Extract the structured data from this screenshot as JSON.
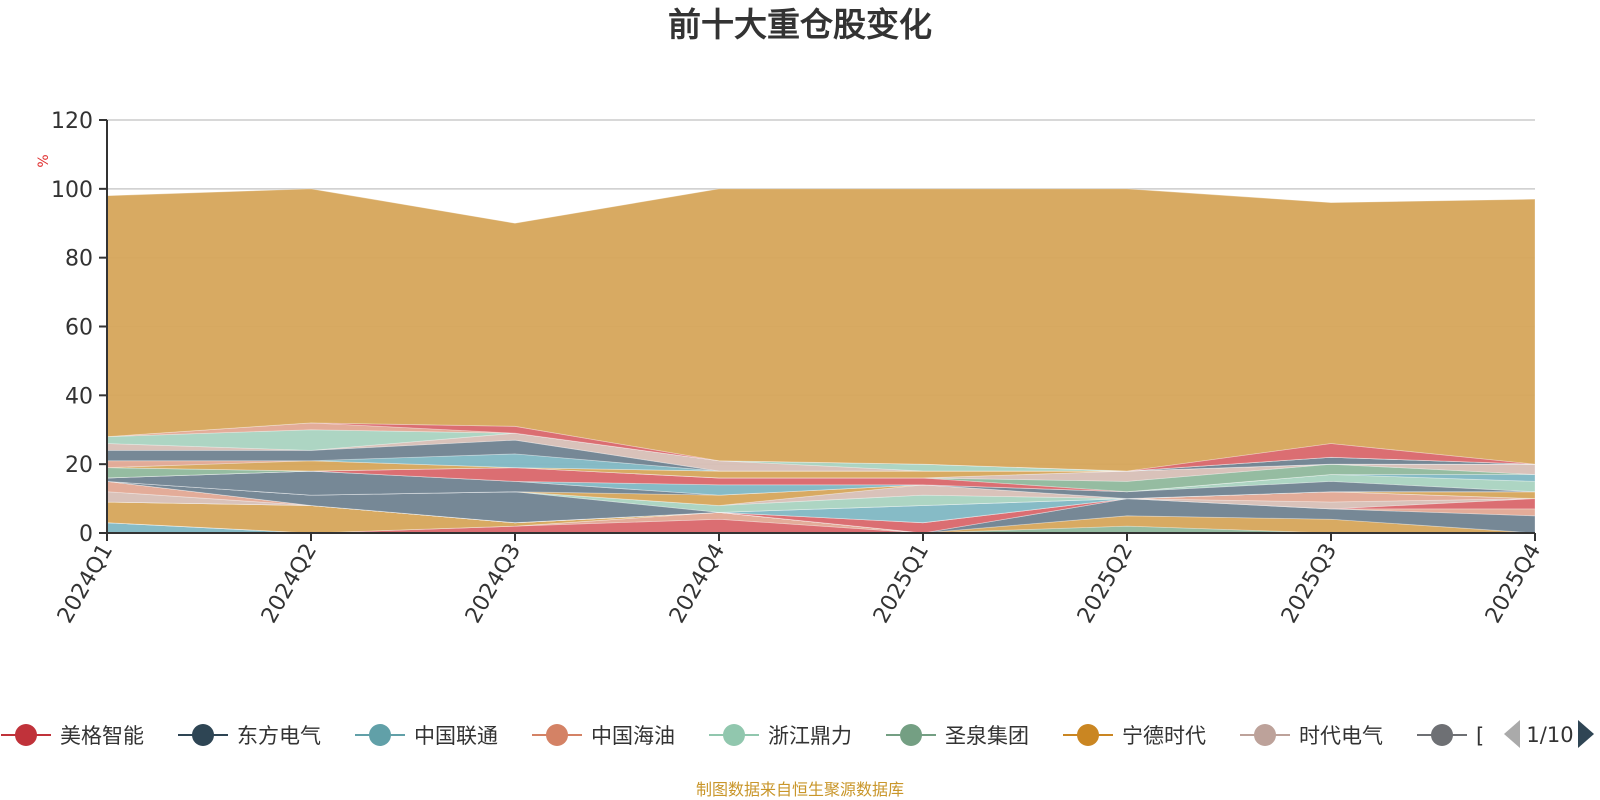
{
  "chart_data": {
    "type": "area",
    "stacked": true,
    "title": "前十大重仓股变化",
    "ylabel": "%",
    "ylim": [
      0,
      120
    ],
    "yticks": [
      0,
      20,
      40,
      60,
      80,
      100,
      120
    ],
    "categories": [
      "2024Q1",
      "2024Q2",
      "2024Q3",
      "2024Q4",
      "2025Q1",
      "2025Q2",
      "2025Q3",
      "2025Q4"
    ],
    "series": [
      {
        "name": "中国联通",
        "color": "#7fb7c3",
        "values": [
          3,
          0,
          0,
          0,
          0,
          0,
          0,
          0
        ]
      },
      {
        "name": "美格智能",
        "color": "#d9666a",
        "values": [
          0,
          0,
          2,
          4,
          0,
          0,
          0,
          0
        ]
      },
      {
        "name": "中国海油",
        "color": "#e2a894",
        "values": [
          0,
          0,
          0,
          2,
          0,
          0,
          0,
          0
        ]
      },
      {
        "name": "圣泉集团",
        "color": "#8fb89c",
        "values": [
          0,
          0,
          0,
          0,
          0,
          2,
          0,
          0
        ]
      },
      {
        "name": "宁德时代",
        "color": "#d6a55a",
        "values": [
          6,
          8,
          1,
          0,
          0,
          3,
          4,
          0
        ]
      },
      {
        "name": "东方电气",
        "color": "#6f8290",
        "values": [
          0,
          0,
          0,
          0,
          0,
          5,
          3,
          5
        ]
      },
      {
        "name": "中国海油",
        "color": "#e2a894",
        "values": [
          0,
          0,
          0,
          0,
          0,
          0,
          0,
          2
        ]
      },
      {
        "name": "美格智能",
        "color": "#d9666a",
        "values": [
          0,
          0,
          0,
          0,
          3,
          0,
          0,
          3
        ]
      },
      {
        "name": "时代电气",
        "color": "#d7bfb6",
        "values": [
          3,
          0,
          0,
          0,
          0,
          0,
          2,
          0
        ]
      },
      {
        "name": "中国海油",
        "color": "#e2a894",
        "values": [
          3,
          0,
          0,
          0,
          0,
          0,
          3,
          0
        ]
      },
      {
        "name": "中国联通",
        "color": "#7fb7c3",
        "values": [
          0,
          0,
          0,
          0,
          5,
          0,
          0,
          0
        ]
      },
      {
        "name": "宁德时代",
        "color": "#d6a55a",
        "values": [
          0,
          0,
          0,
          0,
          0,
          0,
          0,
          2
        ]
      },
      {
        "name": "东方电气",
        "color": "#6f8290",
        "values": [
          0,
          3,
          9,
          0,
          0,
          0,
          0,
          0
        ]
      },
      {
        "name": "浙江鼎力",
        "color": "#a9d3c0",
        "values": [
          0,
          0,
          0,
          2,
          3,
          0,
          0,
          0
        ]
      },
      {
        "name": "时代电气",
        "color": "#d7bfb6",
        "values": [
          0,
          0,
          0,
          0,
          3,
          0,
          0,
          0
        ]
      },
      {
        "name": "宁德时代",
        "color": "#d6a55a",
        "values": [
          0,
          0,
          0,
          3,
          0,
          0,
          0,
          0
        ]
      },
      {
        "name": "东方电气",
        "color": "#6f8290",
        "values": [
          1,
          7,
          3,
          0,
          0,
          2,
          3,
          0
        ]
      },
      {
        "name": "浙江鼎力",
        "color": "#a9d3c0",
        "values": [
          0,
          0,
          0,
          0,
          0,
          0,
          2,
          3
        ]
      },
      {
        "name": "中国联通",
        "color": "#7fb7c3",
        "values": [
          0,
          0,
          0,
          3,
          0,
          0,
          0,
          2
        ]
      },
      {
        "name": "美格智能",
        "color": "#d9666a",
        "values": [
          0,
          0,
          4,
          2,
          2,
          0,
          0,
          0
        ]
      },
      {
        "name": "圣泉集团",
        "color": "#8fb89c",
        "values": [
          3,
          0,
          0,
          0,
          0,
          3,
          3,
          0
        ]
      },
      {
        "name": "时代电气",
        "color": "#d7bfb6",
        "values": [
          0,
          0,
          0,
          0,
          0,
          3,
          0,
          3
        ]
      },
      {
        "name": "宁德时代",
        "color": "#d6a55a",
        "values": [
          0,
          3,
          0,
          2,
          2,
          0,
          0,
          0
        ]
      },
      {
        "name": "中国海油",
        "color": "#e2a894",
        "values": [
          2,
          0,
          0,
          0,
          0,
          0,
          0,
          0
        ]
      },
      {
        "name": "中国联通",
        "color": "#7fb7c3",
        "values": [
          0,
          0,
          4,
          0,
          0,
          0,
          0,
          0
        ]
      },
      {
        "name": "东方电气",
        "color": "#6f8290",
        "values": [
          3,
          3,
          4,
          0,
          0,
          0,
          2,
          0
        ]
      },
      {
        "name": "时代电气",
        "color": "#d7bfb6",
        "values": [
          2,
          0,
          2,
          3,
          0,
          0,
          0,
          0
        ]
      },
      {
        "name": "浙江鼎力",
        "color": "#a9d3c0",
        "values": [
          2,
          6,
          0,
          0,
          2,
          0,
          0,
          0
        ]
      },
      {
        "name": "中国海油",
        "color": "#e2a894",
        "values": [
          0,
          2,
          0,
          0,
          0,
          0,
          0,
          0
        ]
      },
      {
        "name": "美格智能",
        "color": "#d9666a",
        "values": [
          0,
          0,
          2,
          0,
          0,
          0,
          4,
          0
        ]
      },
      {
        "name": "宁德时代",
        "color": "#d6a55a",
        "values": [
          70,
          68,
          59,
          79,
          80,
          82,
          70,
          77
        ]
      }
    ]
  },
  "legend": {
    "items": [
      {
        "label": "美格智能",
        "color": "#c0323a"
      },
      {
        "label": "东方电气",
        "color": "#2e4554"
      },
      {
        "label": "中国联通",
        "color": "#61a0a8"
      },
      {
        "label": "中国海油",
        "color": "#d48265"
      },
      {
        "label": "浙江鼎力",
        "color": "#91c7ae"
      },
      {
        "label": "圣泉集团",
        "color": "#749f83"
      },
      {
        "label": "宁德时代",
        "color": "#ca8622"
      },
      {
        "label": "时代电气",
        "color": "#bda29a"
      },
      {
        "label": "[",
        "color": "#6e7074"
      }
    ],
    "page": "1/10"
  },
  "source": "制图数据来自恒生聚源数据库"
}
